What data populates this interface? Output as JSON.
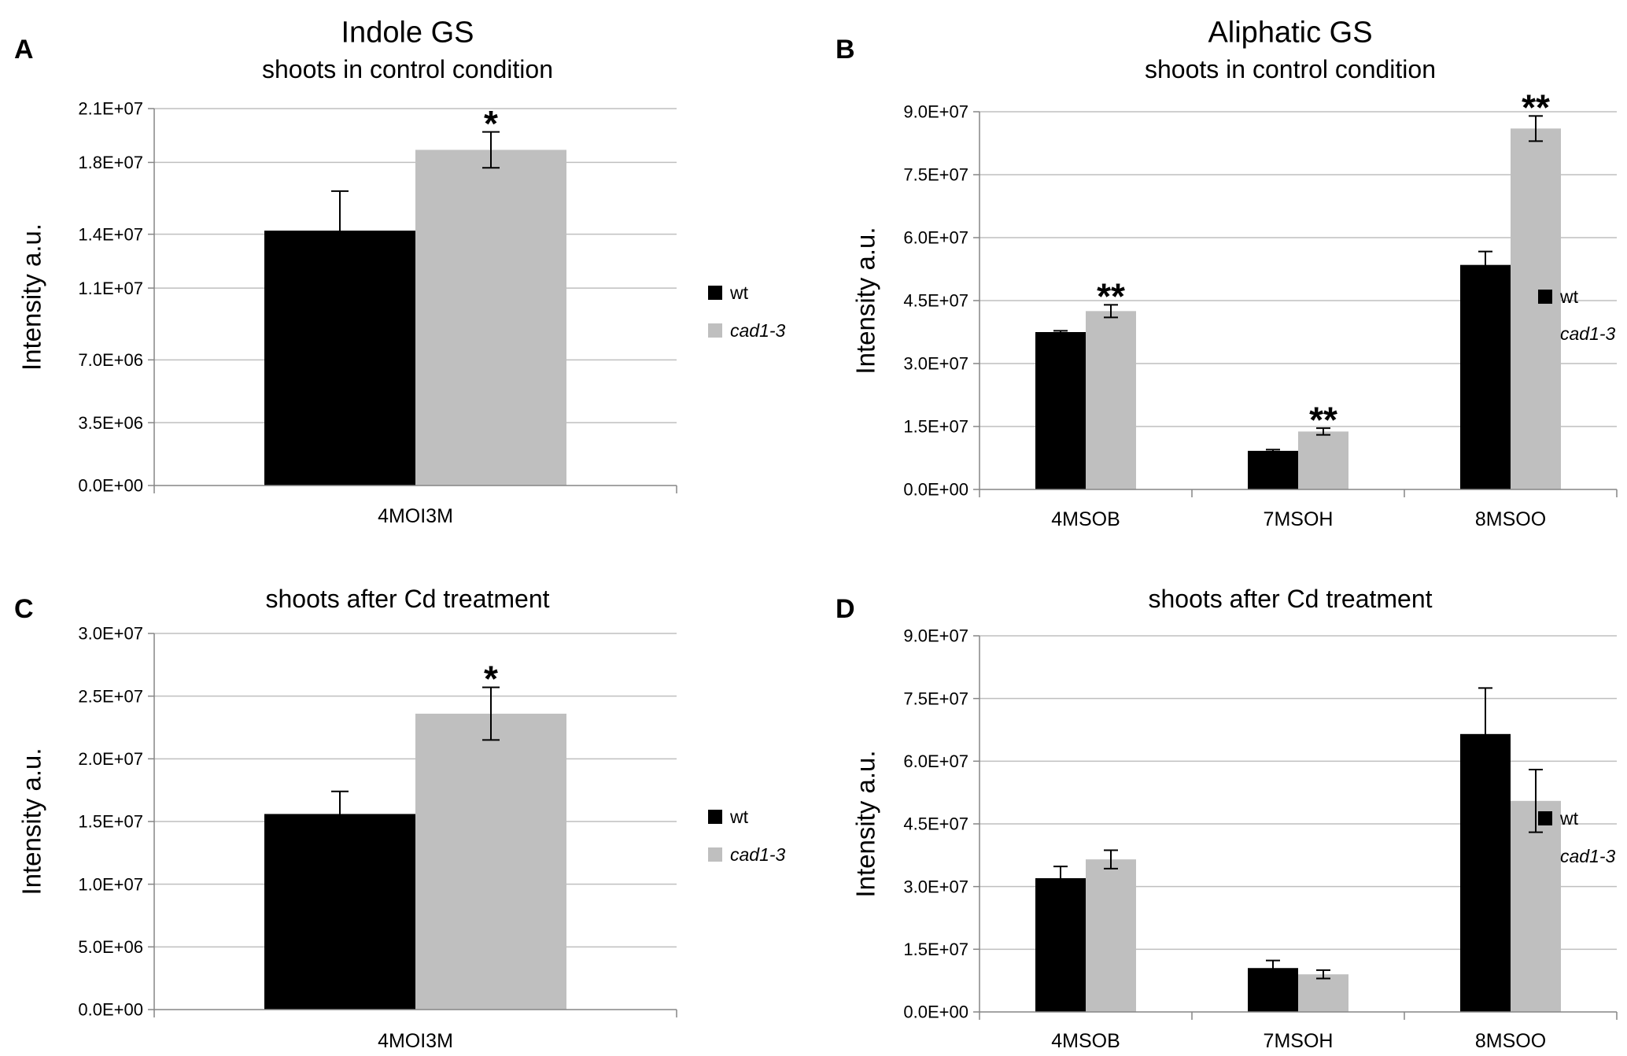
{
  "colors": {
    "wt": "#000000",
    "cad1_3": "#bfbfbf",
    "grid": "#bfbfbf",
    "axis": "#868686"
  },
  "chart_data": [
    {
      "panel": "A",
      "type": "bar",
      "title": "Indole GS",
      "subtitle": "shoots in control condition",
      "ylabel": "Intensity a.u.",
      "xlabel": "",
      "ylim": [
        0,
        21000000
      ],
      "yticks": [
        0,
        3500000,
        7000000,
        11000000,
        14000000,
        18000000,
        21000000
      ],
      "ytick_labels": [
        "0.0E+00",
        "3.5E+06",
        "7.0E+06",
        "1.1E+07",
        "1.4E+07",
        "1.8E+07",
        "2.1E+07"
      ],
      "categories": [
        "4MOI3M"
      ],
      "series": [
        {
          "name": "wt",
          "values": [
            14200000
          ],
          "errors": [
            2200000
          ],
          "sig": [
            ""
          ]
        },
        {
          "name": "cad1-3",
          "values": [
            18700000
          ],
          "errors": [
            1000000
          ],
          "sig": [
            "*"
          ]
        }
      ],
      "legend": [
        "wt",
        "cad1-3"
      ],
      "legend_position": "right"
    },
    {
      "panel": "B",
      "type": "bar",
      "title": "Aliphatic GS",
      "subtitle": "shoots in control condition",
      "ylabel": "Intensity a.u.",
      "xlabel": "",
      "ylim": [
        0,
        90000000
      ],
      "yticks": [
        0,
        15000000,
        30000000,
        45000000,
        60000000,
        75000000,
        90000000
      ],
      "ytick_labels": [
        "0.0E+00",
        "1.5E+07",
        "3.0E+07",
        "4.5E+07",
        "6.0E+07",
        "7.5E+07",
        "9.0E+07"
      ],
      "categories": [
        "4MSOB",
        "7MSOH",
        "8MSOO"
      ],
      "series": [
        {
          "name": "wt",
          "values": [
            37500000,
            9200000,
            53500000
          ],
          "errors": [
            300000,
            300000,
            3200000
          ],
          "sig": [
            "",
            "",
            ""
          ]
        },
        {
          "name": "cad1-3",
          "values": [
            42500000,
            13800000,
            86000000
          ],
          "errors": [
            1500000,
            800000,
            3000000
          ],
          "sig": [
            "**",
            "**",
            "**"
          ]
        }
      ],
      "legend": [
        "wt",
        "cad1-3"
      ],
      "legend_position": "right"
    },
    {
      "panel": "C",
      "type": "bar",
      "title": "",
      "subtitle": "shoots after Cd treatment",
      "ylabel": "Intensity a.u.",
      "xlabel": "",
      "ylim": [
        0,
        30000000
      ],
      "yticks": [
        0,
        5000000,
        10000000,
        15000000,
        20000000,
        25000000,
        30000000
      ],
      "ytick_labels": [
        "0.0E+00",
        "5.0E+06",
        "1.0E+07",
        "1.5E+07",
        "2.0E+07",
        "2.5E+07",
        "3.0E+07"
      ],
      "categories": [
        "4MOI3M"
      ],
      "series": [
        {
          "name": "wt",
          "values": [
            15600000
          ],
          "errors": [
            1800000
          ],
          "sig": [
            ""
          ]
        },
        {
          "name": "cad1-3",
          "values": [
            23600000
          ],
          "errors": [
            2100000
          ],
          "sig": [
            "*"
          ]
        }
      ],
      "legend": [
        "wt",
        "cad1-3"
      ],
      "legend_position": "right"
    },
    {
      "panel": "D",
      "type": "bar",
      "title": "",
      "subtitle": "shoots after Cd treatment",
      "ylabel": "Intensity a.u.",
      "xlabel": "",
      "ylim": [
        0,
        90000000
      ],
      "yticks": [
        0,
        15000000,
        30000000,
        45000000,
        60000000,
        75000000,
        90000000
      ],
      "ytick_labels": [
        "0.0E+00",
        "1.5E+07",
        "3.0E+07",
        "4.5E+07",
        "6.0E+07",
        "7.5E+07",
        "9.0E+07"
      ],
      "categories": [
        "4MSOB",
        "7MSOH",
        "8MSOO"
      ],
      "series": [
        {
          "name": "wt",
          "values": [
            32000000,
            10500000,
            66500000
          ],
          "errors": [
            2800000,
            1800000,
            11000000
          ],
          "sig": [
            "",
            "",
            ""
          ]
        },
        {
          "name": "cad1-3",
          "values": [
            36500000,
            9000000,
            50500000
          ],
          "errors": [
            2200000,
            1000000,
            7500000
          ],
          "sig": [
            "",
            "",
            ""
          ]
        }
      ],
      "legend": [
        "wt",
        "cad1-3"
      ],
      "legend_position": "right"
    }
  ]
}
